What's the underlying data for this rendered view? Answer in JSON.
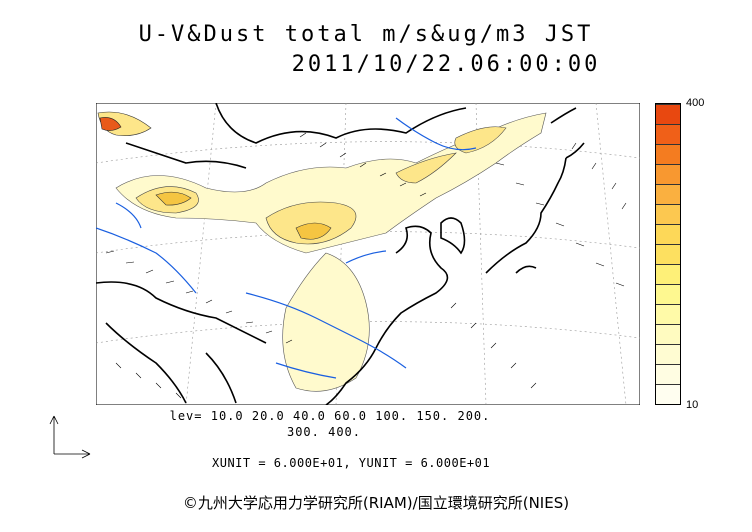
{
  "title": {
    "line1": "U-V&Dust total m/s&ug/m3 JST",
    "line2": "2011/10/22.06:00:00"
  },
  "legend": {
    "max_label": "400",
    "min_label": "10",
    "colors": [
      "#e84810",
      "#f06018",
      "#f47c20",
      "#f89830",
      "#fab040",
      "#fcc850",
      "#fdd858",
      "#fde060",
      "#fef078",
      "#fef890",
      "#fffaa8",
      "#fffbc0",
      "#fffcd2",
      "#fffde2",
      "#fffef0"
    ]
  },
  "contour_levels": {
    "line1": "lev= 10.0 20.0 40.0 60.0 100. 150. 200.",
    "line2": "300. 400."
  },
  "units": "XUNIT = 6.000E+01, YUNIT = 6.000E+01",
  "copyright": "©九州大学応用力学研究所(RIAM)/国立環境研究所(NIES)",
  "map": {
    "land_color": "#ffffff",
    "coast_color": "#000000",
    "river_color": "#1a5fe0",
    "dust_low_color": "#fffacd",
    "dust_mid_color": "#fde68a",
    "dust_high_color": "#f5c542",
    "dust_peak_color": "#e85a1a"
  }
}
